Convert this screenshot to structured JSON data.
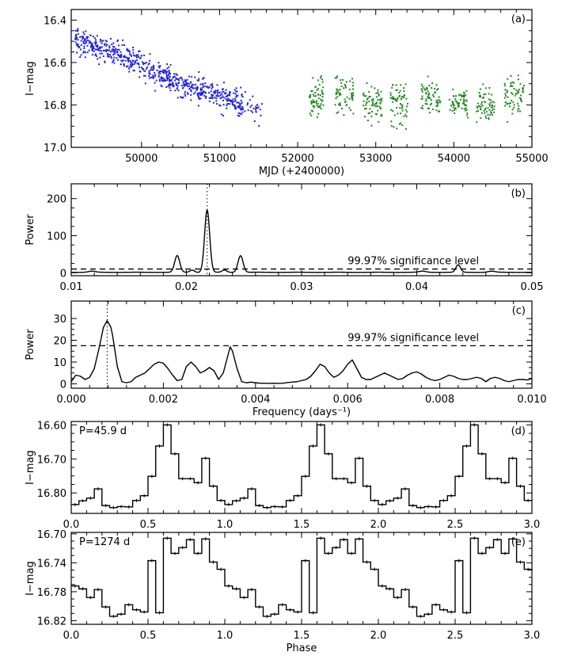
{
  "colors": {
    "early": "#1f1fe6",
    "late": "#1e8a1e",
    "ink": "#000000"
  },
  "chart_data": [
    {
      "id": "a",
      "type": "scatter",
      "panel_label": "(a)",
      "xlabel": "MJD (+2400000)",
      "ylabel": "I−mag",
      "xlim": [
        49100,
        55000
      ],
      "ylim": [
        17.0,
        16.35
      ],
      "yreversed": true,
      "xticks": [
        50000,
        51000,
        52000,
        53000,
        54000,
        55000
      ],
      "xtick_labels": [
        "50000",
        "51000",
        "52000",
        "53000",
        "54000",
        "55000"
      ],
      "yticks": [
        16.4,
        16.6,
        16.8,
        17.0
      ],
      "ytick_labels": [
        "16.4",
        "16.6",
        "16.8",
        "17.0"
      ],
      "series": [
        {
          "name": "early data (blue)",
          "color": "#1f1fe6",
          "trend_x": [
            49150,
            49500,
            49700,
            50000,
            50500,
            51000,
            51500
          ],
          "trend_y": [
            16.5,
            16.53,
            16.55,
            16.62,
            16.7,
            16.76,
            16.82
          ],
          "x_start": 49150,
          "x_end": 51550,
          "scatter_mag": 0.05,
          "count": 750
        },
        {
          "name": "late data (green)",
          "color": "#1e8a1e",
          "seasons": [
            {
              "start": 52150,
              "end": 52330,
              "center": 16.77,
              "spread": 0.11
            },
            {
              "start": 52480,
              "end": 52720,
              "center": 16.75,
              "spread": 0.1
            },
            {
              "start": 52840,
              "end": 53080,
              "center": 16.8,
              "spread": 0.1
            },
            {
              "start": 53190,
              "end": 53420,
              "center": 16.8,
              "spread": 0.1
            },
            {
              "start": 53580,
              "end": 53830,
              "center": 16.77,
              "spread": 0.1
            },
            {
              "start": 53940,
              "end": 54180,
              "center": 16.78,
              "spread": 0.09
            },
            {
              "start": 54290,
              "end": 54520,
              "center": 16.8,
              "spread": 0.1
            },
            {
              "start": 54650,
              "end": 54900,
              "center": 16.76,
              "spread": 0.1
            }
          ],
          "count": 520
        }
      ]
    },
    {
      "id": "b",
      "type": "line",
      "panel_label": "(b)",
      "xlabel": "",
      "ylabel": "Power",
      "xlim": [
        0.01,
        0.05
      ],
      "ylim": [
        -8,
        240
      ],
      "xticks": [
        0.01,
        0.02,
        0.03,
        0.04,
        0.05
      ],
      "xtick_labels": [
        "0.01",
        "0.02",
        "0.03",
        "0.04",
        "0.05"
      ],
      "yticks": [
        0,
        100,
        200
      ],
      "ytick_labels": [
        "0",
        "100",
        "200"
      ],
      "peaks": [
        {
          "x": 0.0218,
          "height": 168,
          "width": 0.00022
        },
        {
          "x": 0.0192,
          "height": 45,
          "width": 0.00022
        },
        {
          "x": 0.0247,
          "height": 45,
          "width": 0.00022
        },
        {
          "x": 0.0205,
          "height": 6,
          "width": 0.0002
        },
        {
          "x": 0.0233,
          "height": 6,
          "width": 0.0002
        },
        {
          "x": 0.0436,
          "height": 20,
          "width": 0.0002
        },
        {
          "x": 0.0118,
          "height": 3,
          "width": 0.0003
        },
        {
          "x": 0.0405,
          "height": 3,
          "width": 0.0003
        },
        {
          "x": 0.0465,
          "height": 3,
          "width": 0.0003
        }
      ],
      "significance_level": 10,
      "significance_label": "99.97% significance level",
      "marker_x": 0.0218
    },
    {
      "id": "c",
      "type": "line",
      "panel_label": "(c)",
      "xlabel": "Frequency (days⁻¹)",
      "ylabel": "Power",
      "xlim": [
        0.0,
        0.01
      ],
      "ylim": [
        -2,
        38
      ],
      "xticks": [
        0.0,
        0.002,
        0.004,
        0.006,
        0.008,
        0.01
      ],
      "xtick_labels": [
        "0.000",
        "0.002",
        "0.004",
        "0.006",
        "0.008",
        "0.010"
      ],
      "yticks": [
        0,
        10,
        20,
        30
      ],
      "ytick_labels": [
        "0",
        "10",
        "20",
        "30"
      ],
      "curve_x": [
        0.0,
        0.0001,
        0.0002,
        0.0003,
        0.0004,
        0.0005,
        0.0006,
        0.0007,
        0.00078,
        0.00086,
        0.0009,
        0.001,
        0.0011,
        0.0012,
        0.0013,
        0.0014,
        0.0015,
        0.0016,
        0.0017,
        0.0018,
        0.0019,
        0.002,
        0.0021,
        0.0022,
        0.0023,
        0.0024,
        0.0025,
        0.0026,
        0.0027,
        0.0028,
        0.0029,
        0.003,
        0.0031,
        0.0032,
        0.0033,
        0.0034,
        0.00345,
        0.0035,
        0.0036,
        0.0037,
        0.0038,
        0.0039,
        0.004,
        0.0041,
        0.0042,
        0.0043,
        0.0044,
        0.0045,
        0.0046,
        0.0047,
        0.0048,
        0.0049,
        0.005,
        0.0051,
        0.0052,
        0.0053,
        0.0054,
        0.0055,
        0.0056,
        0.0057,
        0.0058,
        0.0059,
        0.006,
        0.0061,
        0.0062,
        0.0063,
        0.0064,
        0.0065,
        0.0066,
        0.0067,
        0.0068,
        0.0069,
        0.007,
        0.0071,
        0.0072,
        0.0073,
        0.0074,
        0.0075,
        0.0076,
        0.0077,
        0.0078,
        0.0079,
        0.008,
        0.0081,
        0.0082,
        0.0083,
        0.0084,
        0.0085,
        0.0086,
        0.0087,
        0.0088,
        0.0089,
        0.009,
        0.0091,
        0.0092,
        0.0093,
        0.0094,
        0.0095,
        0.0096,
        0.0097,
        0.0098,
        0.0099,
        0.01
      ],
      "curve_y": [
        1,
        4,
        3.5,
        2,
        3,
        7,
        16,
        26,
        29,
        26,
        22,
        8,
        1,
        0.5,
        1,
        3,
        4,
        5,
        7,
        9,
        10,
        9.5,
        7,
        4,
        1.5,
        2,
        8,
        10,
        8,
        5,
        6,
        7.5,
        6,
        2,
        5,
        13,
        17,
        15,
        7,
        1,
        0.5,
        0.8,
        0.5,
        0.3,
        0.3,
        0.2,
        0.3,
        0.2,
        0.3,
        0.6,
        0.8,
        1,
        1.5,
        2,
        3.5,
        6,
        9,
        8,
        5,
        3,
        4,
        6,
        9,
        11,
        7,
        3,
        2,
        2,
        3,
        4,
        5,
        4,
        3,
        2,
        2.5,
        4,
        5,
        5.5,
        4.5,
        3,
        2,
        1.5,
        2,
        3,
        4,
        3.5,
        2.5,
        2,
        2,
        2.5,
        3,
        2.5,
        1,
        2.5,
        3,
        2.5,
        1.5,
        1,
        1.5,
        2,
        2,
        1.8,
        2.5
      ],
      "significance_level": 17.5,
      "significance_label": "99.97% significance level",
      "marker_x": 0.00078
    },
    {
      "id": "d",
      "type": "line",
      "step": true,
      "panel_label": "(d)",
      "annotation": "P=45.9 d",
      "xlabel": "",
      "ylabel": "I−mag",
      "xlim": [
        0,
        3
      ],
      "ylim": [
        16.86,
        16.59
      ],
      "yreversed": true,
      "xticks": [
        0,
        0.5,
        1,
        1.5,
        2,
        2.5,
        3
      ],
      "xtick_labels": [
        "0.0",
        "0.5",
        "1.0",
        "1.5",
        "2.0",
        "2.5",
        "3.0"
      ],
      "yticks": [
        16.6,
        16.7,
        16.8
      ],
      "ytick_labels": [
        "16.60",
        "16.70",
        "16.80"
      ],
      "phase_bins": [
        0.0,
        0.05,
        0.1,
        0.15,
        0.2,
        0.25,
        0.3,
        0.35,
        0.4,
        0.45,
        0.5,
        0.55,
        0.6,
        0.65,
        0.7,
        0.75,
        0.8,
        0.85,
        0.9,
        0.95
      ],
      "values": [
        16.834,
        16.823,
        16.815,
        16.788,
        16.837,
        16.843,
        16.84,
        16.841,
        16.822,
        16.808,
        16.751,
        16.662,
        16.6,
        16.685,
        16.758,
        16.758,
        16.77,
        16.698,
        16.78,
        16.822
      ],
      "repeat_cycles": 3
    },
    {
      "id": "e",
      "type": "line",
      "step": true,
      "panel_label": "(e)",
      "annotation": "P=1274 d",
      "xlabel": "Phase",
      "ylabel": "I−mag",
      "xlim": [
        0,
        3
      ],
      "ylim": [
        16.825,
        16.698
      ],
      "yreversed": true,
      "xticks": [
        0,
        0.5,
        1,
        1.5,
        2,
        2.5,
        3
      ],
      "xtick_labels": [
        "0.0",
        "0.5",
        "1.0",
        "1.5",
        "2.0",
        "2.5",
        "3.0"
      ],
      "yticks": [
        16.7,
        16.74,
        16.78,
        16.82
      ],
      "ytick_labels": [
        "16.70",
        "16.74",
        "16.78",
        "16.82"
      ],
      "phase_bins": [
        0.0,
        0.05,
        0.1,
        0.15,
        0.2,
        0.25,
        0.3,
        0.35,
        0.4,
        0.45,
        0.5,
        0.55,
        0.6,
        0.65,
        0.7,
        0.75,
        0.8,
        0.85,
        0.9,
        0.95
      ],
      "values": [
        16.772,
        16.776,
        16.788,
        16.777,
        16.801,
        16.814,
        16.811,
        16.798,
        16.805,
        16.808,
        16.737,
        16.809,
        16.706,
        16.727,
        16.719,
        16.708,
        16.727,
        16.707,
        16.739,
        16.749
      ],
      "repeat_cycles": 3
    }
  ]
}
